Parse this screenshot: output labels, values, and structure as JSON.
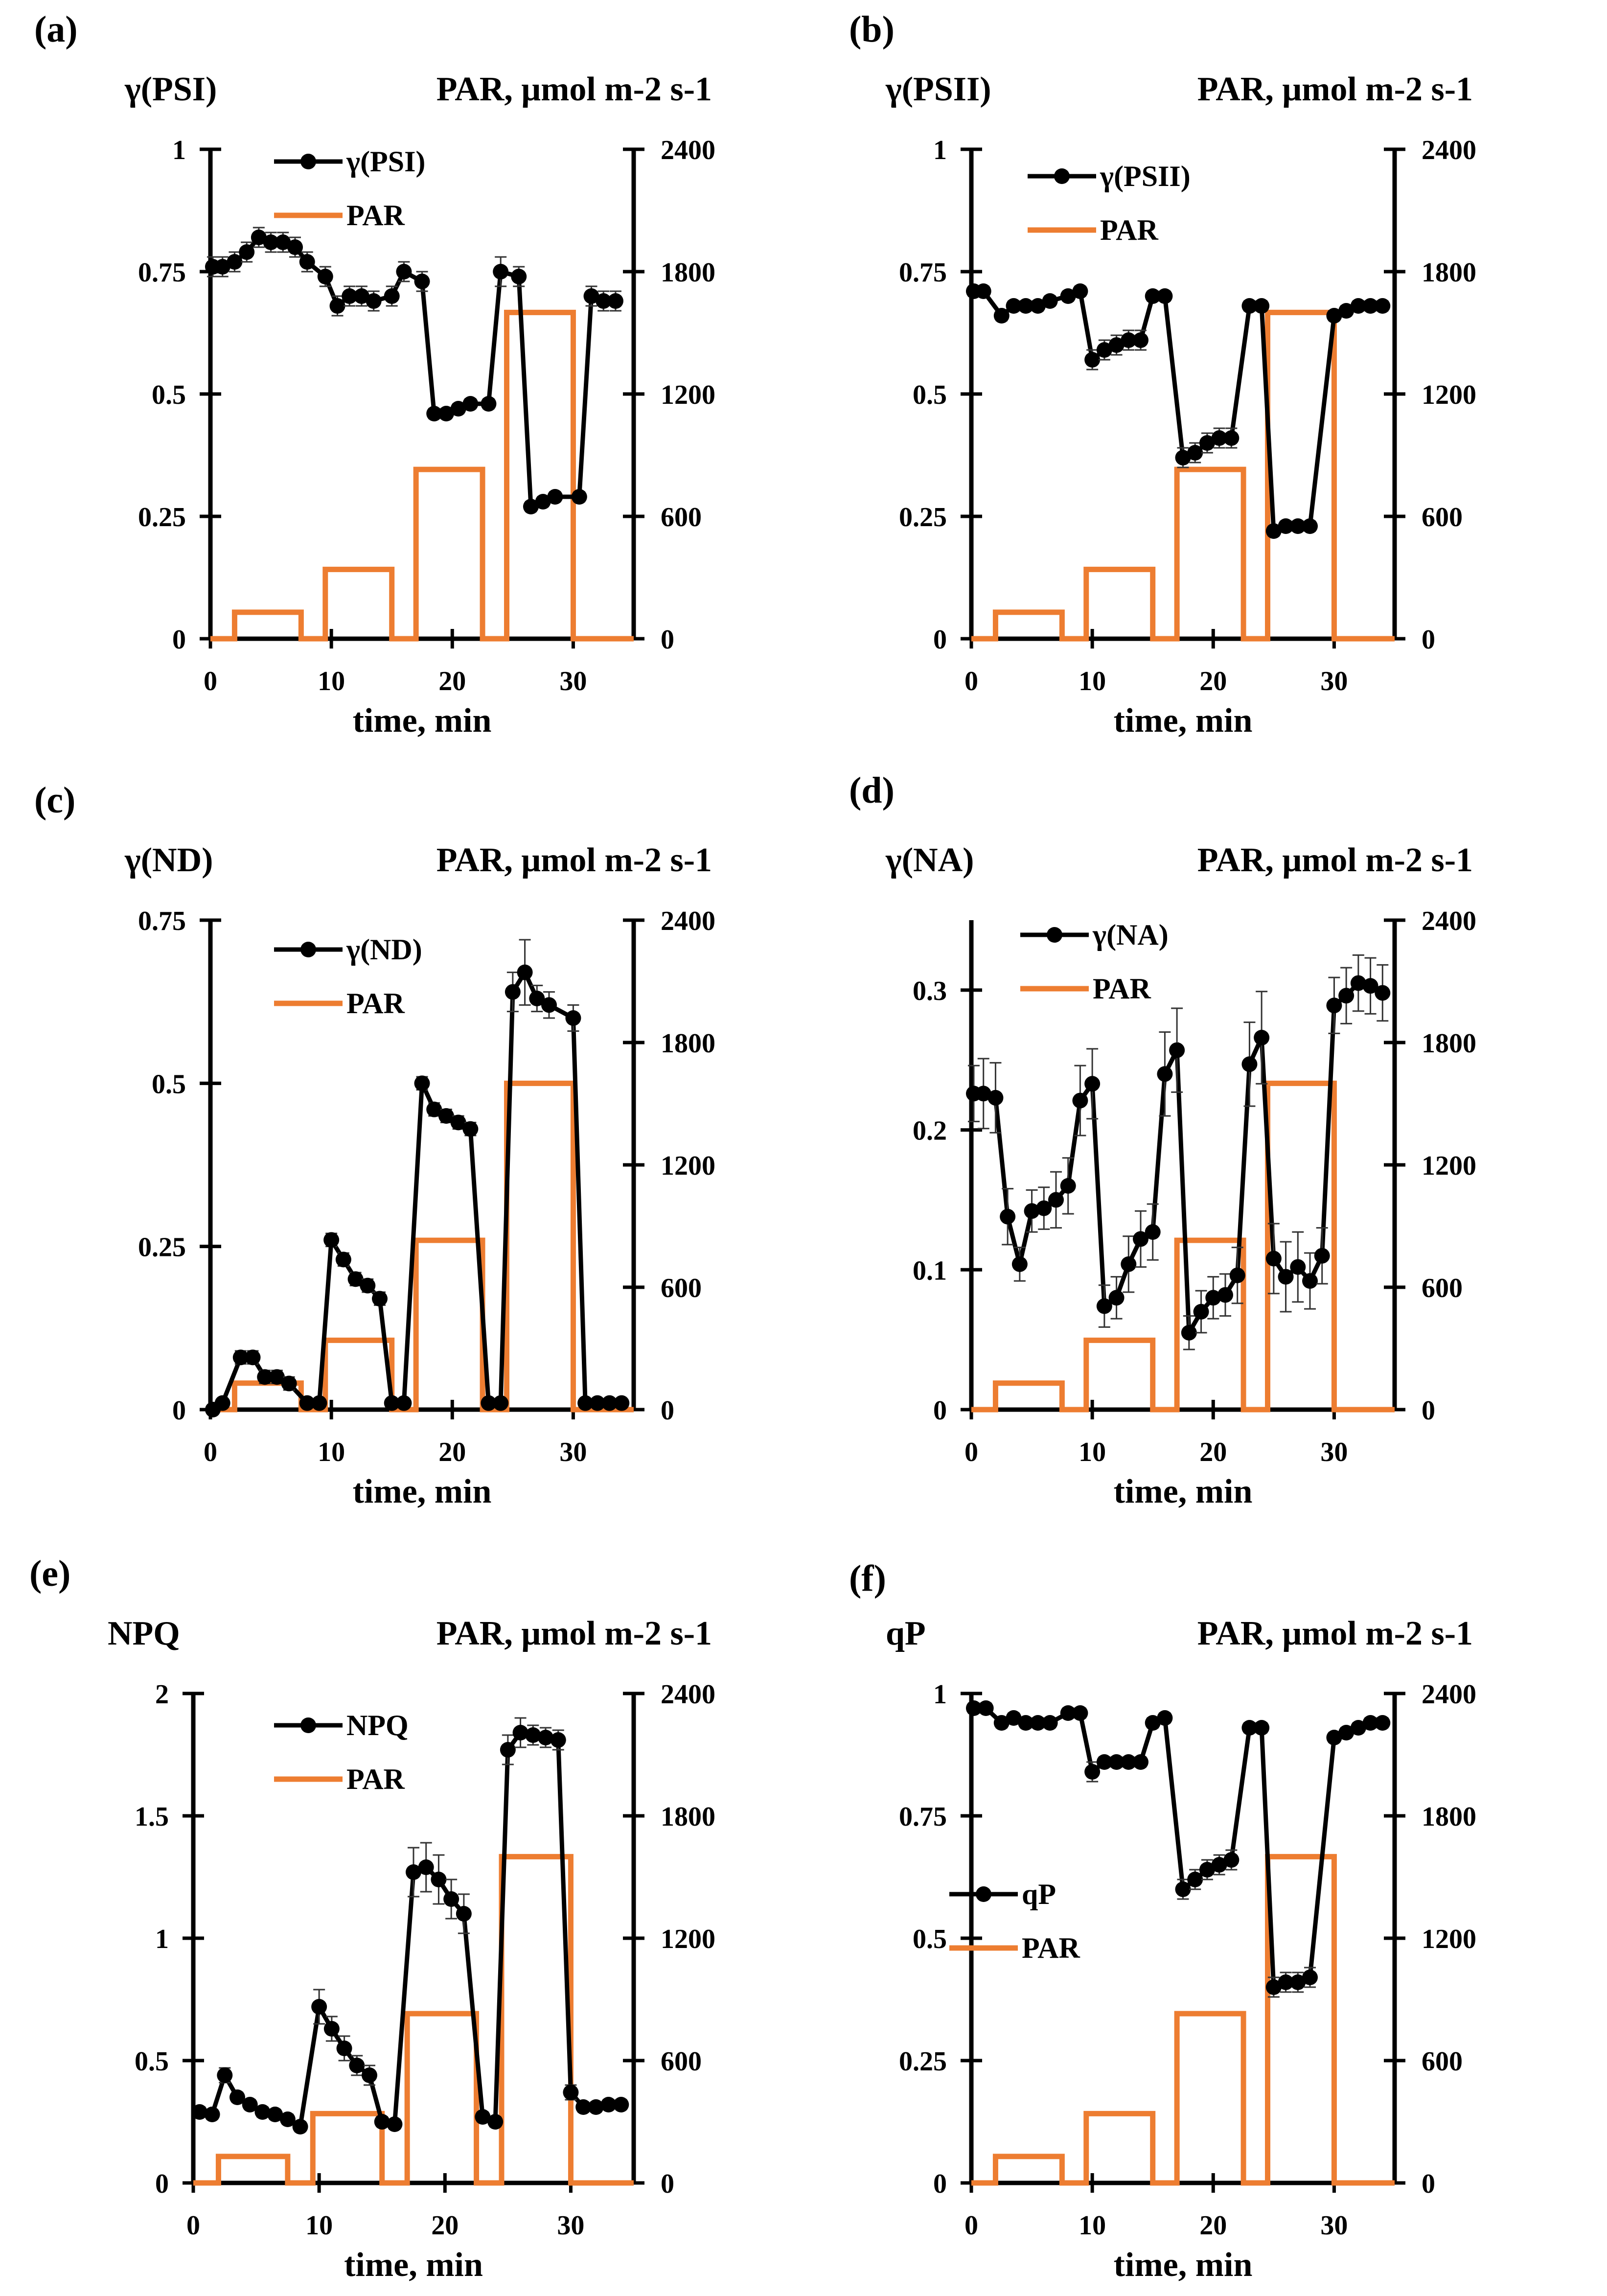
{
  "colors": {
    "series": "#000000",
    "par": "#ED7D31",
    "axis": "#000000"
  },
  "chart_data": [
    {
      "type": "line",
      "panel": "(a)",
      "title": "",
      "ylabel": "γ(PSI)",
      "ylabel_right": "PAR, μmol m-2 s-1",
      "xlabel": "time, min",
      "xlim": [
        0,
        35
      ],
      "xticks": [
        "0",
        "10",
        "20",
        "30"
      ],
      "ylim": [
        0,
        1
      ],
      "yticks": [
        "0",
        "0.25",
        "0.5",
        "0.75",
        "1"
      ],
      "y2lim": [
        0,
        2400
      ],
      "y2ticks": [
        "0",
        "600",
        "1200",
        "1800",
        "2400"
      ],
      "legend": [
        "γ(PSI)",
        "PAR"
      ],
      "legend_position": "top-center",
      "series": [
        {
          "name": "γ(PSI)",
          "x": [
            0.2,
            1,
            2,
            3,
            4,
            5,
            6,
            7,
            8,
            9.5,
            10.5,
            11.5,
            12.5,
            13.5,
            15,
            16,
            17.5,
            18.5,
            19.5,
            20.5,
            21.5,
            23,
            24,
            25.5,
            26.5,
            27.5,
            28.5,
            30.5,
            31.5,
            32.5,
            33.5
          ],
          "y": [
            0.76,
            0.76,
            0.77,
            0.79,
            0.82,
            0.81,
            0.81,
            0.8,
            0.77,
            0.74,
            0.68,
            0.7,
            0.7,
            0.69,
            0.7,
            0.75,
            0.73,
            0.46,
            0.46,
            0.47,
            0.48,
            0.48,
            0.75,
            0.74,
            0.27,
            0.28,
            0.29,
            0.29,
            0.7,
            0.69,
            0.69
          ],
          "err": [
            0.02,
            0.02,
            0.02,
            0.02,
            0.02,
            0.02,
            0.02,
            0.02,
            0.02,
            0.02,
            0.02,
            0.02,
            0.02,
            0.02,
            0.02,
            0.02,
            0.02,
            0.01,
            0.01,
            0.01,
            0.01,
            0.01,
            0.03,
            0.02,
            0.01,
            0.01,
            0.01,
            0.01,
            0.02,
            0.02,
            0.02
          ]
        }
      ],
      "par": {
        "x": [
          0,
          2,
          2,
          7.5,
          7.5,
          9.5,
          9.5,
          15,
          15,
          17,
          17,
          22.5,
          22.5,
          24.5,
          24.5,
          30,
          30,
          35
        ],
        "y": [
          0,
          0,
          130,
          130,
          0,
          0,
          340,
          340,
          0,
          0,
          830,
          830,
          0,
          0,
          1600,
          1600,
          0,
          0
        ]
      }
    },
    {
      "type": "line",
      "panel": "(b)",
      "title": "",
      "ylabel": "γ(PSII)",
      "ylabel_right": "PAR, μmol m-2 s-1",
      "xlabel": "time, min",
      "xlim": [
        0,
        35
      ],
      "xticks": [
        "0",
        "10",
        "20",
        "30"
      ],
      "ylim": [
        0,
        1
      ],
      "yticks": [
        "0",
        "0.25",
        "0.5",
        "0.75",
        "1"
      ],
      "y2lim": [
        0,
        2400
      ],
      "y2ticks": [
        "0",
        "600",
        "1200",
        "1800",
        "2400"
      ],
      "legend": [
        "γ(PSII)",
        "PAR"
      ],
      "legend_position": "top-center",
      "series": [
        {
          "name": "γ(PSII)",
          "x": [
            0.2,
            1,
            2.5,
            3.5,
            4.5,
            5.5,
            6.5,
            8,
            9,
            10,
            11,
            12,
            13,
            14,
            15,
            16,
            17.5,
            18.5,
            19.5,
            20.5,
            21.5,
            23,
            24,
            25,
            26,
            27,
            28,
            30,
            31,
            32,
            33,
            34
          ],
          "y": [
            0.71,
            0.71,
            0.66,
            0.68,
            0.68,
            0.68,
            0.69,
            0.7,
            0.71,
            0.57,
            0.59,
            0.6,
            0.61,
            0.61,
            0.7,
            0.7,
            0.37,
            0.38,
            0.4,
            0.41,
            0.41,
            0.68,
            0.68,
            0.22,
            0.23,
            0.23,
            0.23,
            0.66,
            0.67,
            0.68,
            0.68,
            0.68
          ],
          "err": [
            0.01,
            0.01,
            0.01,
            0.01,
            0.01,
            0.01,
            0.01,
            0.01,
            0.01,
            0.02,
            0.02,
            0.02,
            0.02,
            0.02,
            0.01,
            0.01,
            0.02,
            0.02,
            0.02,
            0.02,
            0.02,
            0.01,
            0.01,
            0.01,
            0.01,
            0.01,
            0.01,
            0.01,
            0.01,
            0.01,
            0.01,
            0.01
          ]
        }
      ],
      "par": {
        "x": [
          0,
          2,
          2,
          7.5,
          7.5,
          9.5,
          9.5,
          15,
          15,
          17,
          17,
          22.5,
          22.5,
          24.5,
          24.5,
          30,
          30,
          35
        ],
        "y": [
          0,
          0,
          130,
          130,
          0,
          0,
          340,
          340,
          0,
          0,
          830,
          830,
          0,
          0,
          1600,
          1600,
          0,
          0
        ]
      }
    },
    {
      "type": "line",
      "panel": "(c)",
      "title": "",
      "ylabel": "γ(ND)",
      "ylabel_right": "PAR, μmol m-2 s-1",
      "xlabel": "time, min",
      "xlim": [
        0,
        35
      ],
      "xticks": [
        "0",
        "10",
        "20",
        "30"
      ],
      "ylim": [
        0,
        0.75
      ],
      "yticks": [
        "0",
        "0.25",
        "0.5",
        "0.75"
      ],
      "y2lim": [
        0,
        2400
      ],
      "y2ticks": [
        "0",
        "600",
        "1200",
        "1800",
        "2400"
      ],
      "legend": [
        "γ(ND)",
        "PAR"
      ],
      "legend_position": "top-center",
      "series": [
        {
          "name": "γ(ND)",
          "x": [
            0.2,
            1,
            2.5,
            3.5,
            4.5,
            5.5,
            6.5,
            8,
            9,
            10,
            11,
            12,
            13,
            14,
            15,
            16,
            17.5,
            18.5,
            19.5,
            20.5,
            21.5,
            23,
            24,
            25,
            26,
            27,
            28,
            30,
            31,
            32,
            33,
            34
          ],
          "y": [
            0.0,
            0.01,
            0.08,
            0.08,
            0.05,
            0.05,
            0.04,
            0.01,
            0.01,
            0.26,
            0.23,
            0.2,
            0.19,
            0.17,
            0.01,
            0.01,
            0.5,
            0.46,
            0.45,
            0.44,
            0.43,
            0.01,
            0.01,
            0.64,
            0.67,
            0.63,
            0.62,
            0.6,
            0.01,
            0.01,
            0.01,
            0.01
          ],
          "err": [
            0.0,
            0.0,
            0.01,
            0.01,
            0.01,
            0.01,
            0.01,
            0.0,
            0.0,
            0.01,
            0.01,
            0.01,
            0.01,
            0.01,
            0.0,
            0.0,
            0.01,
            0.01,
            0.01,
            0.01,
            0.01,
            0.0,
            0.0,
            0.03,
            0.05,
            0.02,
            0.02,
            0.02,
            0.0,
            0.0,
            0.0,
            0.0
          ]
        }
      ],
      "par": {
        "x": [
          0,
          2,
          2,
          7.5,
          7.5,
          9.5,
          9.5,
          15,
          15,
          17,
          17,
          22.5,
          22.5,
          24.5,
          24.5,
          30,
          30,
          35
        ],
        "y": [
          0,
          0,
          130,
          130,
          0,
          0,
          340,
          340,
          0,
          0,
          830,
          830,
          0,
          0,
          1600,
          1600,
          0,
          0
        ]
      }
    },
    {
      "type": "line",
      "panel": "(d)",
      "title": "",
      "ylabel": "γ(NA)",
      "ylabel_right": "PAR, μmol m-2 s-1",
      "xlabel": "time, min",
      "xlim": [
        0,
        35
      ],
      "xticks": [
        "0",
        "10",
        "20",
        "30"
      ],
      "ylim": [
        0,
        0.35
      ],
      "yticks": [
        "0",
        "0.1",
        "0.2",
        "0.3"
      ],
      "y2lim": [
        0,
        2400
      ],
      "y2ticks": [
        "0",
        "600",
        "1200",
        "1800",
        "2400"
      ],
      "legend": [
        "γ(NA)",
        "PAR"
      ],
      "legend_position": "top-center",
      "series": [
        {
          "name": "γ(NA)",
          "x": [
            0.2,
            1,
            2,
            3,
            4,
            5,
            6,
            7,
            8,
            9,
            10,
            11,
            12,
            13,
            14,
            15,
            16,
            17,
            18,
            19,
            20,
            21,
            22,
            23,
            24,
            25,
            26,
            27,
            28,
            29,
            30,
            31,
            32,
            33,
            34
          ],
          "y": [
            0.226,
            0.226,
            0.223,
            0.138,
            0.104,
            0.142,
            0.144,
            0.15,
            0.16,
            0.221,
            0.233,
            0.074,
            0.08,
            0.104,
            0.122,
            0.127,
            0.24,
            0.257,
            0.055,
            0.07,
            0.08,
            0.082,
            0.096,
            0.247,
            0.266,
            0.108,
            0.095,
            0.102,
            0.092,
            0.11,
            0.289,
            0.296,
            0.305,
            0.303,
            0.298
          ],
          "err": [
            0.02,
            0.025,
            0.025,
            0.02,
            0.012,
            0.015,
            0.015,
            0.02,
            0.02,
            0.025,
            0.025,
            0.015,
            0.015,
            0.02,
            0.02,
            0.02,
            0.03,
            0.03,
            0.012,
            0.015,
            0.015,
            0.015,
            0.02,
            0.03,
            0.033,
            0.025,
            0.025,
            0.025,
            0.02,
            0.02,
            0.02,
            0.02,
            0.02,
            0.02,
            0.02
          ]
        }
      ],
      "par": {
        "x": [
          0,
          2,
          2,
          7.5,
          7.5,
          9.5,
          9.5,
          15,
          15,
          17,
          17,
          22.5,
          22.5,
          24.5,
          24.5,
          30,
          30,
          35
        ],
        "y": [
          0,
          0,
          130,
          130,
          0,
          0,
          340,
          340,
          0,
          0,
          830,
          830,
          0,
          0,
          1600,
          1600,
          0,
          0
        ]
      }
    },
    {
      "type": "line",
      "panel": "(e)",
      "title": "",
      "ylabel": "NPQ",
      "ylabel_right": "PAR, μmol m-2 s-1",
      "xlabel": "time, min",
      "xlim": [
        0,
        35
      ],
      "xticks": [
        "0",
        "10",
        "20",
        "30"
      ],
      "ylim": [
        0,
        2
      ],
      "yticks": [
        "0",
        "0.5",
        "1",
        "1.5",
        "2"
      ],
      "y2lim": [
        0,
        2400
      ],
      "y2ticks": [
        "0",
        "600",
        "1200",
        "1800",
        "2400"
      ],
      "legend": [
        "NPQ",
        "PAR"
      ],
      "legend_position": "top-center",
      "series": [
        {
          "name": "NPQ",
          "x": [
            0.5,
            1.5,
            2.5,
            3.5,
            4.5,
            5.5,
            6.5,
            7.5,
            8.5,
            10,
            11,
            12,
            13,
            14,
            15,
            16,
            17.5,
            18.5,
            19.5,
            20.5,
            21.5,
            23,
            24,
            25,
            26,
            27,
            28,
            29,
            30,
            31,
            32,
            33,
            34
          ],
          "y": [
            0.29,
            0.28,
            0.44,
            0.35,
            0.32,
            0.29,
            0.28,
            0.26,
            0.23,
            0.72,
            0.63,
            0.55,
            0.48,
            0.44,
            0.25,
            0.24,
            1.27,
            1.29,
            1.24,
            1.16,
            1.1,
            0.27,
            0.25,
            1.77,
            1.84,
            1.83,
            1.82,
            1.81,
            0.37,
            0.31,
            0.31,
            0.32,
            0.32
          ],
          "err": [
            0.02,
            0.02,
            0.03,
            0.02,
            0.02,
            0.02,
            0.02,
            0.02,
            0.02,
            0.07,
            0.05,
            0.05,
            0.04,
            0.04,
            0.02,
            0.02,
            0.1,
            0.1,
            0.1,
            0.08,
            0.08,
            0.02,
            0.02,
            0.06,
            0.06,
            0.04,
            0.04,
            0.04,
            0.03,
            0.02,
            0.02,
            0.02,
            0.02
          ]
        }
      ],
      "par": {
        "x": [
          0,
          2,
          2,
          7.5,
          7.5,
          9.5,
          9.5,
          15,
          15,
          17,
          17,
          22.5,
          22.5,
          24.5,
          24.5,
          30,
          30,
          35
        ],
        "y": [
          0,
          0,
          130,
          130,
          0,
          0,
          340,
          340,
          0,
          0,
          830,
          830,
          0,
          0,
          1600,
          1600,
          0,
          0
        ]
      }
    },
    {
      "type": "line",
      "panel": "(f)",
      "title": "",
      "ylabel": "qP",
      "ylabel_right": "PAR, μmol m-2 s-1",
      "xlabel": "time, min",
      "xlim": [
        0,
        35
      ],
      "xticks": [
        "0",
        "10",
        "20",
        "30"
      ],
      "ylim": [
        0,
        1
      ],
      "yticks": [
        "0",
        "0.25",
        "0.5",
        "0.75",
        "1"
      ],
      "y2lim": [
        0,
        2400
      ],
      "y2ticks": [
        "0",
        "600",
        "1200",
        "1800",
        "2400"
      ],
      "legend": [
        "qP",
        "PAR"
      ],
      "legend_position": "center-left",
      "series": [
        {
          "name": "qP",
          "x": [
            0.2,
            1.2,
            2.5,
            3.5,
            4.5,
            5.5,
            6.5,
            8,
            9,
            10,
            11,
            12,
            13,
            14,
            15,
            16,
            17.5,
            18.5,
            19.5,
            20.5,
            21.5,
            23,
            24,
            25,
            26,
            27,
            28,
            30,
            31,
            32,
            33,
            34
          ],
          "y": [
            0.97,
            0.97,
            0.94,
            0.95,
            0.94,
            0.94,
            0.94,
            0.96,
            0.96,
            0.84,
            0.86,
            0.86,
            0.86,
            0.86,
            0.94,
            0.95,
            0.6,
            0.62,
            0.64,
            0.65,
            0.66,
            0.93,
            0.93,
            0.4,
            0.41,
            0.41,
            0.42,
            0.91,
            0.92,
            0.93,
            0.94,
            0.94
          ],
          "err": [
            0.01,
            0.01,
            0.01,
            0.01,
            0.01,
            0.01,
            0.01,
            0.01,
            0.01,
            0.02,
            0.01,
            0.01,
            0.01,
            0.01,
            0.01,
            0.01,
            0.02,
            0.02,
            0.02,
            0.02,
            0.02,
            0.01,
            0.01,
            0.02,
            0.02,
            0.02,
            0.02,
            0.01,
            0.01,
            0.01,
            0.01,
            0.01
          ]
        }
      ],
      "par": {
        "x": [
          0,
          2,
          2,
          7.5,
          7.5,
          9.5,
          9.5,
          15,
          15,
          17,
          17,
          22.5,
          22.5,
          24.5,
          24.5,
          30,
          30,
          35
        ],
        "y": [
          0,
          0,
          130,
          130,
          0,
          0,
          340,
          340,
          0,
          0,
          830,
          830,
          0,
          0,
          1600,
          1600,
          0,
          0
        ]
      }
    }
  ]
}
